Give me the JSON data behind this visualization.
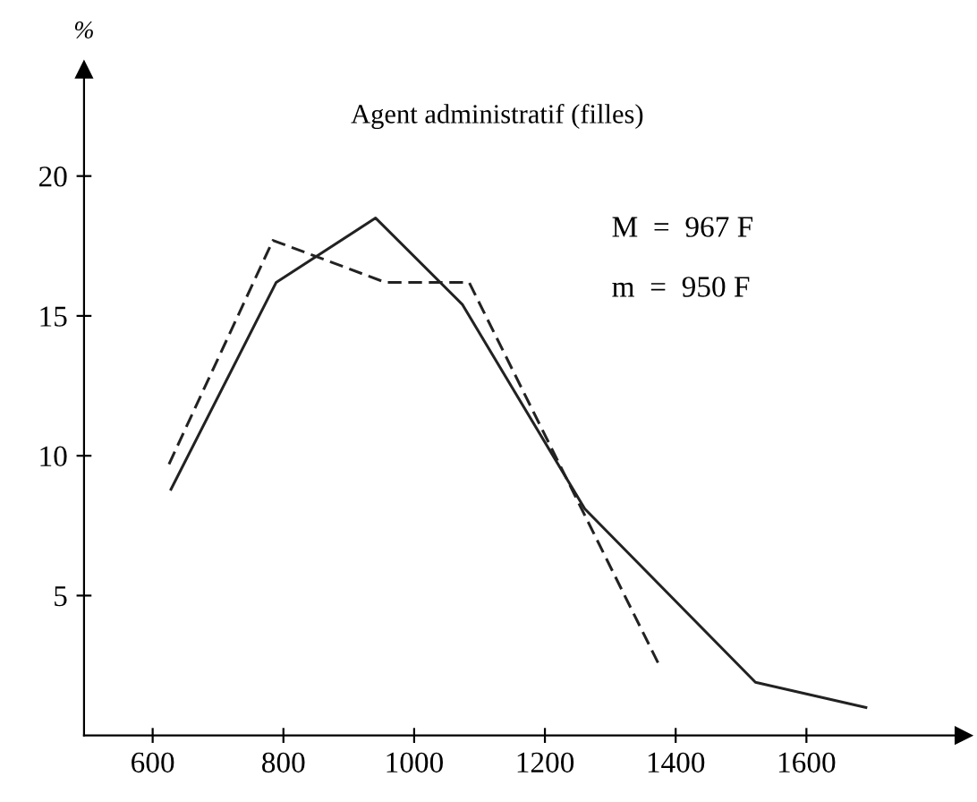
{
  "chart_data": {
    "type": "line",
    "title": "Agent administratif (filles)",
    "ylabel": "%",
    "annotations": [
      "M  =  967 F",
      "m  =  950 F"
    ],
    "series": [
      {
        "color": "#222222",
        "line_style": "solid",
        "x": [
          628,
          789,
          941,
          1074,
          1261,
          1522,
          1691
        ],
        "values": [
          8.8,
          16.2,
          18.5,
          15.4,
          8.1,
          1.9,
          1.0
        ]
      },
      {
        "color": "#222222",
        "line_style": "dashed",
        "x": [
          625,
          784,
          956,
          1084,
          1373
        ],
        "values": [
          9.7,
          17.7,
          16.2,
          16.2,
          2.6
        ]
      }
    ],
    "xlim": [
      495,
      1840
    ],
    "ylim": [
      0,
      23.8
    ],
    "xticks": [
      600,
      800,
      1000,
      1200,
      1400,
      1600
    ],
    "yticks": [
      5,
      10,
      15,
      20
    ],
    "grid": false,
    "legend": false,
    "marker": "none"
  }
}
